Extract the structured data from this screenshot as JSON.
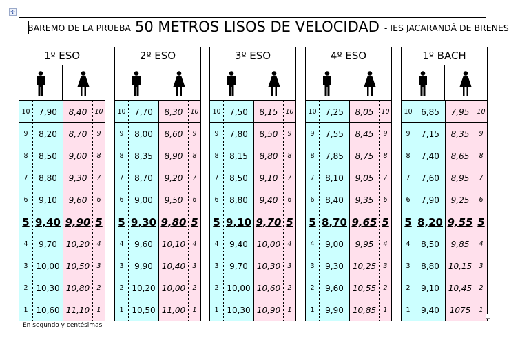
{
  "document": {
    "title_prefix": "BAREMO DE LA PRUEBA",
    "title_main": "50 METROS LISOS DE VELOCIDAD",
    "title_suffix": "- IES JACARANDÁ DE BRENES",
    "footnote": "En segundo y centésimas",
    "move_handle_glyph": "✣"
  },
  "colors": {
    "male_bg": "#ccffff",
    "female_bg": "#ffe0ec",
    "border": "#000000"
  },
  "icons": {
    "male": "man-icon",
    "female": "woman-icon"
  },
  "grades": [
    {
      "name": "1º ESO",
      "rows": [
        {
          "score": "10",
          "male": "7,90",
          "female": "8,40"
        },
        {
          "score": "9",
          "male": "8,20",
          "female": "8,70"
        },
        {
          "score": "8",
          "male": "8,50",
          "female": "9,00"
        },
        {
          "score": "7",
          "male": "8,80",
          "female": "9,30"
        },
        {
          "score": "6",
          "male": "9,10",
          "female": "9,60"
        },
        {
          "score": "5",
          "male": "9,40",
          "female": "9,90"
        },
        {
          "score": "4",
          "male": "9,70",
          "female": "10,20"
        },
        {
          "score": "3",
          "male": "10,00",
          "female": "10,50"
        },
        {
          "score": "2",
          "male": "10,30",
          "female": "10,80"
        },
        {
          "score": "1",
          "male": "10,60",
          "female": "11,10"
        }
      ]
    },
    {
      "name": "2º ESO",
      "rows": [
        {
          "score": "10",
          "male": "7,70",
          "female": "8,30"
        },
        {
          "score": "9",
          "male": "8,00",
          "female": "8,60"
        },
        {
          "score": "8",
          "male": "8,35",
          "female": "8,90"
        },
        {
          "score": "7",
          "male": "8,70",
          "female": "9,20"
        },
        {
          "score": "6",
          "male": "9,00",
          "female": "9,50"
        },
        {
          "score": "5",
          "male": "9,30",
          "female": "9,80"
        },
        {
          "score": "4",
          "male": "9,60",
          "female": "10,10"
        },
        {
          "score": "3",
          "male": "9,90",
          "female": "10,40"
        },
        {
          "score": "2",
          "male": "10,20",
          "female": "10,00"
        },
        {
          "score": "1",
          "male": "10,50",
          "female": "11,00"
        }
      ]
    },
    {
      "name": "3º ESO",
      "rows": [
        {
          "score": "10",
          "male": "7,50",
          "female": "8,15"
        },
        {
          "score": "9",
          "male": "7,80",
          "female": "8,50"
        },
        {
          "score": "8",
          "male": "8,15",
          "female": "8,80"
        },
        {
          "score": "7",
          "male": "8,50",
          "female": "9,10"
        },
        {
          "score": "6",
          "male": "8,80",
          "female": "9,40"
        },
        {
          "score": "5",
          "male": "9,10",
          "female": "9,70"
        },
        {
          "score": "4",
          "male": "9,40",
          "female": "10,00"
        },
        {
          "score": "3",
          "male": "9,70",
          "female": "10,30"
        },
        {
          "score": "2",
          "male": "10,00",
          "female": "10,60"
        },
        {
          "score": "1",
          "male": "10,30",
          "female": "10,90"
        }
      ]
    },
    {
      "name": "4º ESO",
      "rows": [
        {
          "score": "10",
          "male": "7,25",
          "female": "8,05"
        },
        {
          "score": "9",
          "male": "7,55",
          "female": "8,45"
        },
        {
          "score": "8",
          "male": "7,85",
          "female": "8,75"
        },
        {
          "score": "7",
          "male": "8,10",
          "female": "9,05"
        },
        {
          "score": "6",
          "male": "8,40",
          "female": "9,35"
        },
        {
          "score": "5",
          "male": "8,70",
          "female": "9,65"
        },
        {
          "score": "4",
          "male": "9,00",
          "female": "9,95"
        },
        {
          "score": "3",
          "male": "9,30",
          "female": "10,25"
        },
        {
          "score": "2",
          "male": "9,60",
          "female": "10,55"
        },
        {
          "score": "1",
          "male": "9,90",
          "female": "10,85"
        }
      ]
    },
    {
      "name": "1º BACH",
      "rows": [
        {
          "score": "10",
          "male": "6,85",
          "female": "7,95"
        },
        {
          "score": "9",
          "male": "7,15",
          "female": "8,35"
        },
        {
          "score": "8",
          "male": "7,40",
          "female": "8,65"
        },
        {
          "score": "7",
          "male": "7,60",
          "female": "8,95"
        },
        {
          "score": "6",
          "male": "7,90",
          "female": "9,25"
        },
        {
          "score": "5",
          "male": "8,20",
          "female": "9,55"
        },
        {
          "score": "4",
          "male": "8,50",
          "female": "9,85"
        },
        {
          "score": "3",
          "male": "8,80",
          "female": "10,15"
        },
        {
          "score": "2",
          "male": "9,10",
          "female": "10,45"
        },
        {
          "score": "1",
          "male": "9,40",
          "female": "1075"
        }
      ]
    }
  ]
}
